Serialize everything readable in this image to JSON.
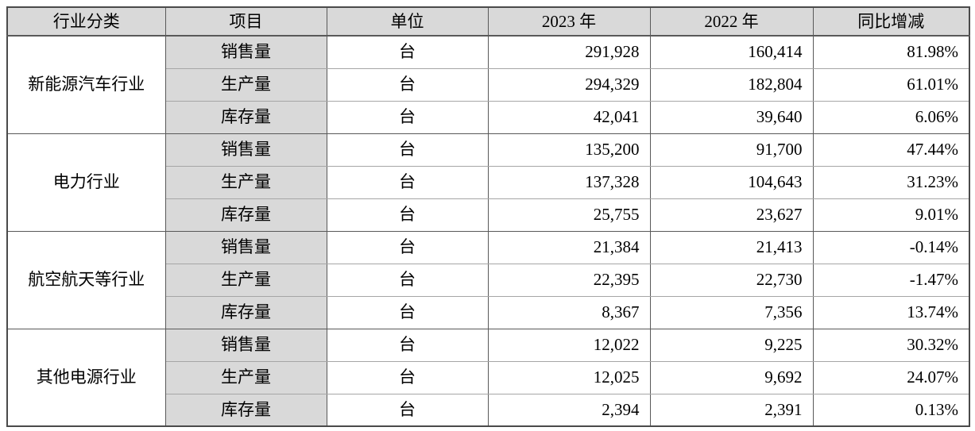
{
  "table": {
    "headers": [
      "行业分类",
      "项目",
      "单位",
      "2023 年",
      "2022 年",
      "同比增减"
    ],
    "groups": [
      {
        "industry": "新能源汽车行业",
        "rows": [
          {
            "item": "销售量",
            "unit": "台",
            "y2023": "291,928",
            "y2022": "160,414",
            "yoy": "81.98%"
          },
          {
            "item": "生产量",
            "unit": "台",
            "y2023": "294,329",
            "y2022": "182,804",
            "yoy": "61.01%"
          },
          {
            "item": "库存量",
            "unit": "台",
            "y2023": "42,041",
            "y2022": "39,640",
            "yoy": "6.06%"
          }
        ]
      },
      {
        "industry": "电力行业",
        "rows": [
          {
            "item": "销售量",
            "unit": "台",
            "y2023": "135,200",
            "y2022": "91,700",
            "yoy": "47.44%"
          },
          {
            "item": "生产量",
            "unit": "台",
            "y2023": "137,328",
            "y2022": "104,643",
            "yoy": "31.23%"
          },
          {
            "item": "库存量",
            "unit": "台",
            "y2023": "25,755",
            "y2022": "23,627",
            "yoy": "9.01%"
          }
        ]
      },
      {
        "industry": "航空航天等行业",
        "rows": [
          {
            "item": "销售量",
            "unit": "台",
            "y2023": "21,384",
            "y2022": "21,413",
            "yoy": "-0.14%"
          },
          {
            "item": "生产量",
            "unit": "台",
            "y2023": "22,395",
            "y2022": "22,730",
            "yoy": "-1.47%"
          },
          {
            "item": "库存量",
            "unit": "台",
            "y2023": "8,367",
            "y2022": "7,356",
            "yoy": "13.74%"
          }
        ]
      },
      {
        "industry": "其他电源行业",
        "rows": [
          {
            "item": "销售量",
            "unit": "台",
            "y2023": "12,022",
            "y2022": "9,225",
            "yoy": "30.32%"
          },
          {
            "item": "生产量",
            "unit": "台",
            "y2023": "12,025",
            "y2022": "9,692",
            "yoy": "24.07%"
          },
          {
            "item": "库存量",
            "unit": "台",
            "y2023": "2,394",
            "y2022": "2,391",
            "yoy": "0.13%"
          }
        ]
      }
    ],
    "colors": {
      "header_bg": "#d9d9d9",
      "item_col_bg": "#d9d9d9",
      "border_dark": "#595959",
      "border_light": "#a6a6a6",
      "text": "#000000"
    }
  }
}
